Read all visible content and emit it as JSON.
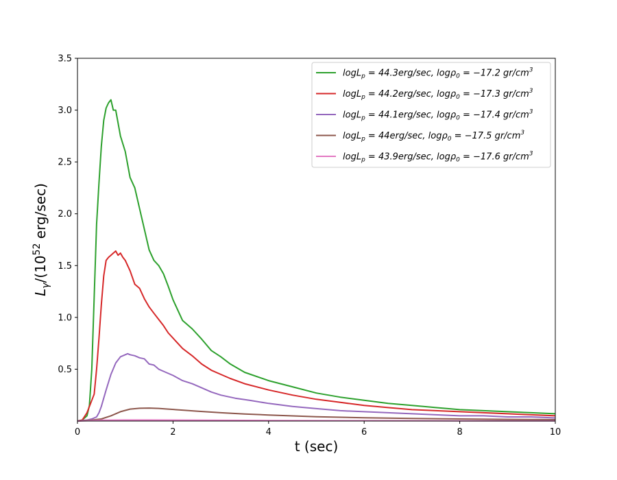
{
  "chart_data": {
    "type": "line",
    "xlabel": "t (sec)",
    "ylabel": "L_γ/(10^52 erg/sec)",
    "xlim": [
      0,
      10
    ],
    "ylim": [
      0,
      3.5
    ],
    "x_ticks": [
      "0",
      "2",
      "4",
      "6",
      "8",
      "10"
    ],
    "y_ticks": [
      "0.5",
      "1.0",
      "1.5",
      "2.0",
      "2.5",
      "3.0",
      "3.5"
    ],
    "grid": false,
    "legend_position": "top-right",
    "series": [
      {
        "name": "logL_p = 44.3erg/sec, logρ_0 = −17.2 gr/cm^3",
        "legend": {
          "pre": "logL",
          "sub1": "p",
          "mid": " = 44.3erg/sec, logρ",
          "sub2": "0",
          "post": " = −17.2 gr/cm",
          "sup": "3"
        },
        "color": "#2ca02c",
        "x": [
          0,
          0.1,
          0.2,
          0.25,
          0.3,
          0.35,
          0.4,
          0.45,
          0.5,
          0.55,
          0.6,
          0.65,
          0.7,
          0.75,
          0.8,
          0.9,
          1.0,
          1.1,
          1.2,
          1.3,
          1.4,
          1.5,
          1.6,
          1.7,
          1.8,
          1.9,
          2.0,
          2.2,
          2.4,
          2.6,
          2.8,
          3.0,
          3.2,
          3.5,
          4.0,
          4.5,
          5.0,
          5.5,
          6.0,
          6.5,
          7.0,
          7.5,
          8.0,
          8.5,
          9.0,
          9.5,
          10.0
        ],
        "y": [
          0,
          0.01,
          0.05,
          0.15,
          0.5,
          1.2,
          1.9,
          2.3,
          2.65,
          2.9,
          3.02,
          3.07,
          3.1,
          3.0,
          3.0,
          2.75,
          2.6,
          2.35,
          2.25,
          2.05,
          1.85,
          1.65,
          1.55,
          1.5,
          1.42,
          1.3,
          1.17,
          0.97,
          0.89,
          0.79,
          0.68,
          0.62,
          0.55,
          0.47,
          0.39,
          0.33,
          0.27,
          0.23,
          0.2,
          0.17,
          0.15,
          0.13,
          0.11,
          0.1,
          0.09,
          0.08,
          0.07
        ]
      },
      {
        "name": "logL_p = 44.2erg/sec, logρ_0 = −17.3 gr/cm^3",
        "legend": {
          "pre": "logL",
          "sub1": "p",
          "mid": " = 44.2erg/sec, logρ",
          "sub2": "0",
          "post": " = −17.3 gr/cm",
          "sup": "3"
        },
        "color": "#d62728",
        "x": [
          0,
          0.1,
          0.2,
          0.3,
          0.35,
          0.4,
          0.45,
          0.5,
          0.55,
          0.6,
          0.65,
          0.7,
          0.75,
          0.8,
          0.85,
          0.9,
          0.95,
          1.0,
          1.1,
          1.2,
          1.3,
          1.4,
          1.5,
          1.6,
          1.7,
          1.8,
          1.9,
          2.0,
          2.2,
          2.4,
          2.6,
          2.8,
          3.0,
          3.2,
          3.5,
          4.0,
          4.5,
          5.0,
          5.5,
          6.0,
          6.5,
          7.0,
          7.5,
          8.0,
          8.5,
          9.0,
          9.5,
          10.0
        ],
        "y": [
          0,
          0.01,
          0.08,
          0.2,
          0.26,
          0.5,
          0.8,
          1.12,
          1.4,
          1.55,
          1.58,
          1.6,
          1.62,
          1.64,
          1.6,
          1.62,
          1.58,
          1.55,
          1.45,
          1.32,
          1.28,
          1.18,
          1.1,
          1.04,
          0.98,
          0.92,
          0.85,
          0.8,
          0.7,
          0.63,
          0.55,
          0.49,
          0.45,
          0.41,
          0.36,
          0.3,
          0.25,
          0.21,
          0.18,
          0.15,
          0.13,
          0.11,
          0.1,
          0.09,
          0.08,
          0.07,
          0.06,
          0.05
        ]
      },
      {
        "name": "logL_p = 44.1erg/sec, logρ_0 = −17.4 gr/cm^3",
        "legend": {
          "pre": "logL",
          "sub1": "p",
          "mid": " = 44.1erg/sec, logρ",
          "sub2": "0",
          "post": " = −17.4 gr/cm",
          "sup": "3"
        },
        "color": "#9467bd",
        "x": [
          0,
          0.2,
          0.3,
          0.35,
          0.4,
          0.45,
          0.5,
          0.55,
          0.6,
          0.7,
          0.8,
          0.9,
          1.0,
          1.05,
          1.1,
          1.2,
          1.3,
          1.4,
          1.5,
          1.6,
          1.7,
          1.8,
          2.0,
          2.2,
          2.4,
          2.6,
          2.8,
          3.0,
          3.3,
          3.6,
          4.0,
          4.5,
          5.0,
          5.5,
          6.0,
          6.5,
          7.0,
          7.5,
          8.0,
          8.5,
          9.0,
          9.5,
          10.0
        ],
        "y": [
          0,
          0.01,
          0.02,
          0.03,
          0.04,
          0.08,
          0.14,
          0.22,
          0.3,
          0.45,
          0.56,
          0.62,
          0.64,
          0.65,
          0.64,
          0.63,
          0.61,
          0.6,
          0.55,
          0.54,
          0.5,
          0.48,
          0.44,
          0.39,
          0.36,
          0.32,
          0.28,
          0.25,
          0.22,
          0.2,
          0.17,
          0.14,
          0.12,
          0.1,
          0.09,
          0.08,
          0.07,
          0.06,
          0.05,
          0.05,
          0.04,
          0.04,
          0.03
        ]
      },
      {
        "name": "logL_p = 44erg/sec, logρ_0 = −17.5 gr/cm^3",
        "legend": {
          "pre": "logL",
          "sub1": "p",
          "mid": " = 44erg/sec, logρ",
          "sub2": "0",
          "post": " = −17.5 gr/cm",
          "sup": "3"
        },
        "color": "#8c564b",
        "x": [
          0,
          0.3,
          0.5,
          0.7,
          0.9,
          1.1,
          1.3,
          1.5,
          1.7,
          1.9,
          2.2,
          2.5,
          3.0,
          3.5,
          4.0,
          5.0,
          6.0,
          7.0,
          8.0,
          9.0,
          10.0
        ],
        "y": [
          0,
          0.01,
          0.02,
          0.05,
          0.09,
          0.115,
          0.123,
          0.125,
          0.122,
          0.115,
          0.105,
          0.095,
          0.08,
          0.068,
          0.058,
          0.042,
          0.032,
          0.025,
          0.02,
          0.016,
          0.013
        ]
      },
      {
        "name": "logL_p = 43.9erg/sec, logρ_0 = −17.6 gr/cm^3",
        "legend": {
          "pre": "logL",
          "sub1": "p",
          "mid": " = 43.9erg/sec, logρ",
          "sub2": "0",
          "post": " = −17.6 gr/cm",
          "sup": "3"
        },
        "color": "#e377c2",
        "x": [
          0,
          0.5,
          1.0,
          1.5,
          2.0,
          3.0,
          4.0,
          6.0,
          8.0,
          10.0
        ],
        "y": [
          0,
          0.008,
          0.01,
          0.01,
          0.009,
          0.007,
          0.005,
          0.003,
          0.002,
          0.001
        ]
      }
    ]
  }
}
